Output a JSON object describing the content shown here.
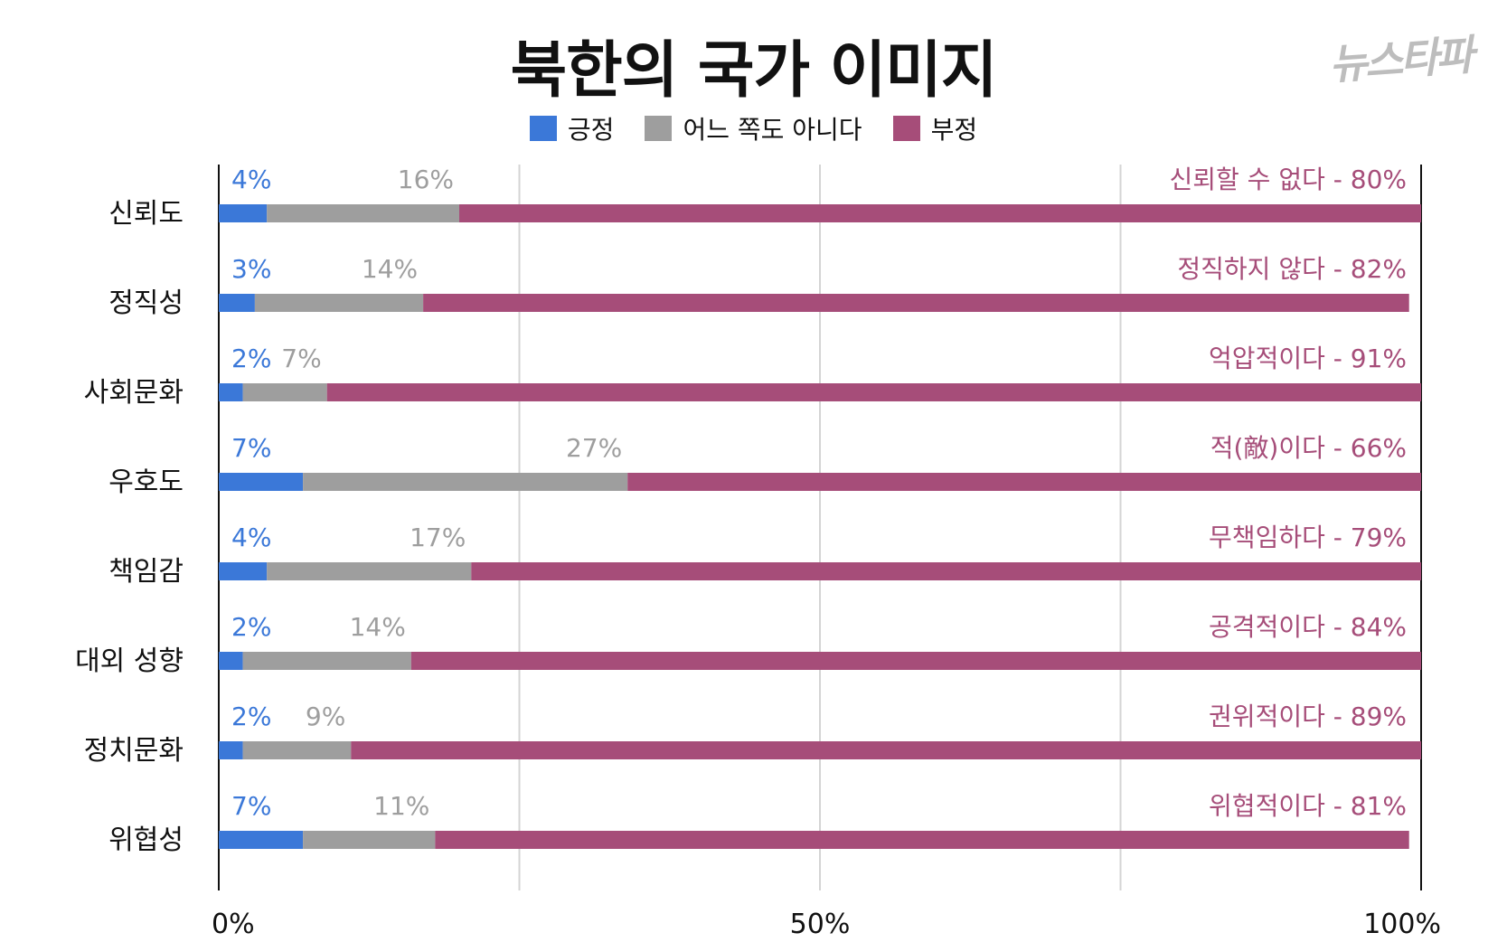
{
  "logo_text": "뉴스타파",
  "chart_data": {
    "type": "bar",
    "stacked": true,
    "orientation": "horizontal",
    "title": "북한의 국가 이미지",
    "xlabel": "",
    "ylabel": "",
    "xlim": [
      0,
      100
    ],
    "x_ticks": [
      "0%",
      "50%",
      "100%"
    ],
    "grid": true,
    "legend_position": "top",
    "colors": {
      "positive": "#3b78d8",
      "neutral": "#9e9e9e",
      "negative": "#a64d79"
    },
    "categories": [
      "신뢰도",
      "정직성",
      "사회문화",
      "우호도",
      "책임감",
      "대외 성향",
      "정치문화",
      "위협성"
    ],
    "series": [
      {
        "name": "긍정",
        "values": [
          4,
          3,
          2,
          7,
          4,
          2,
          2,
          7
        ],
        "labels": [
          "4%",
          "3%",
          "2%",
          "7%",
          "4%",
          "2%",
          "2%",
          "7%"
        ]
      },
      {
        "name": "어느 쪽도 아니다",
        "values": [
          16,
          14,
          7,
          27,
          17,
          14,
          9,
          11
        ],
        "labels": [
          "16%",
          "14%",
          "7%",
          "27%",
          "17%",
          "14%",
          "9%",
          "11%"
        ]
      },
      {
        "name": "부정",
        "values": [
          80,
          82,
          91,
          66,
          79,
          84,
          89,
          81
        ],
        "labels": [
          "신뢰할 수 없다 - 80%",
          "정직하지 않다 - 82%",
          "억압적이다 - 91%",
          "적(敵)이다 - 66%",
          "무책임하다 - 79%",
          "공격적이다 - 84%",
          "권위적이다 - 89%",
          "위협적이다 - 81%"
        ]
      }
    ]
  }
}
